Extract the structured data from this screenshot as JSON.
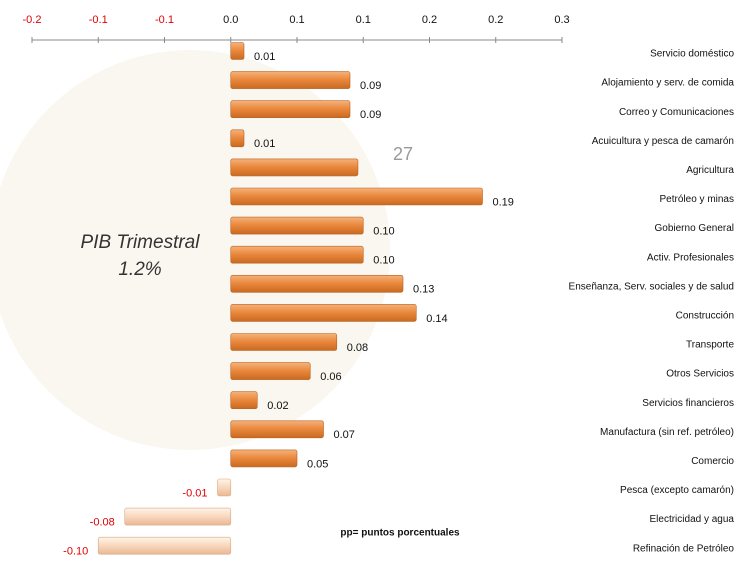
{
  "page_number": "27",
  "chart_data": {
    "type": "hbar",
    "annotations": [
      "PIB Trimestral",
      "1.2%"
    ],
    "note": "pp= puntos porcentuales",
    "categories": [
      "Servicio doméstico",
      "Alojamiento y serv. de comida",
      "Correo y Comunicaciones",
      "Acuicultura y pesca de camarón",
      "Agricultura",
      "Petróleo y minas",
      "Gobierno General",
      "Activ. Profesionales",
      "Enseñanza, Serv. sociales y de salud",
      "Construcción",
      "Transporte",
      "Otros Servicios",
      "Servicios financieros",
      "Manufactura (sin ref. petróleo)",
      "Comercio",
      "Pesca (excepto camarón)",
      "Electricidad y agua",
      "Refinación de Petróleo"
    ],
    "values": [
      0.01,
      0.09,
      0.09,
      0.01,
      0.096,
      0.19,
      0.1,
      0.1,
      0.13,
      0.14,
      0.08,
      0.06,
      0.02,
      0.07,
      0.05,
      -0.01,
      -0.08,
      -0.1
    ],
    "value_labels": [
      "0.01",
      "0.09",
      "0.09",
      "0.01",
      null,
      "0.19",
      "0.10",
      "0.10",
      "0.13",
      "0.14",
      "0.08",
      "0.06",
      "0.02",
      "0.07",
      "0.05",
      "-0.01",
      "-0.08",
      "-0.10"
    ],
    "color": "#e8863a",
    "negative_color": "#f8d7bd",
    "negative_label_color": "#e00000",
    "xlim": [
      -0.15,
      0.25
    ],
    "xticks": [
      {
        "value": -0.15,
        "label": "-0.2"
      },
      {
        "value": -0.1,
        "label": "-0.1"
      },
      {
        "value": -0.05,
        "label": "-0.1"
      },
      {
        "value": 0,
        "label": "0.0"
      },
      {
        "value": 0.05,
        "label": "0.1"
      },
      {
        "value": 0.1,
        "label": "0.1"
      },
      {
        "value": 0.15,
        "label": "0.2"
      },
      {
        "value": 0.2,
        "label": "0.2"
      },
      {
        "value": 0.25,
        "label": "0.3"
      }
    ]
  }
}
